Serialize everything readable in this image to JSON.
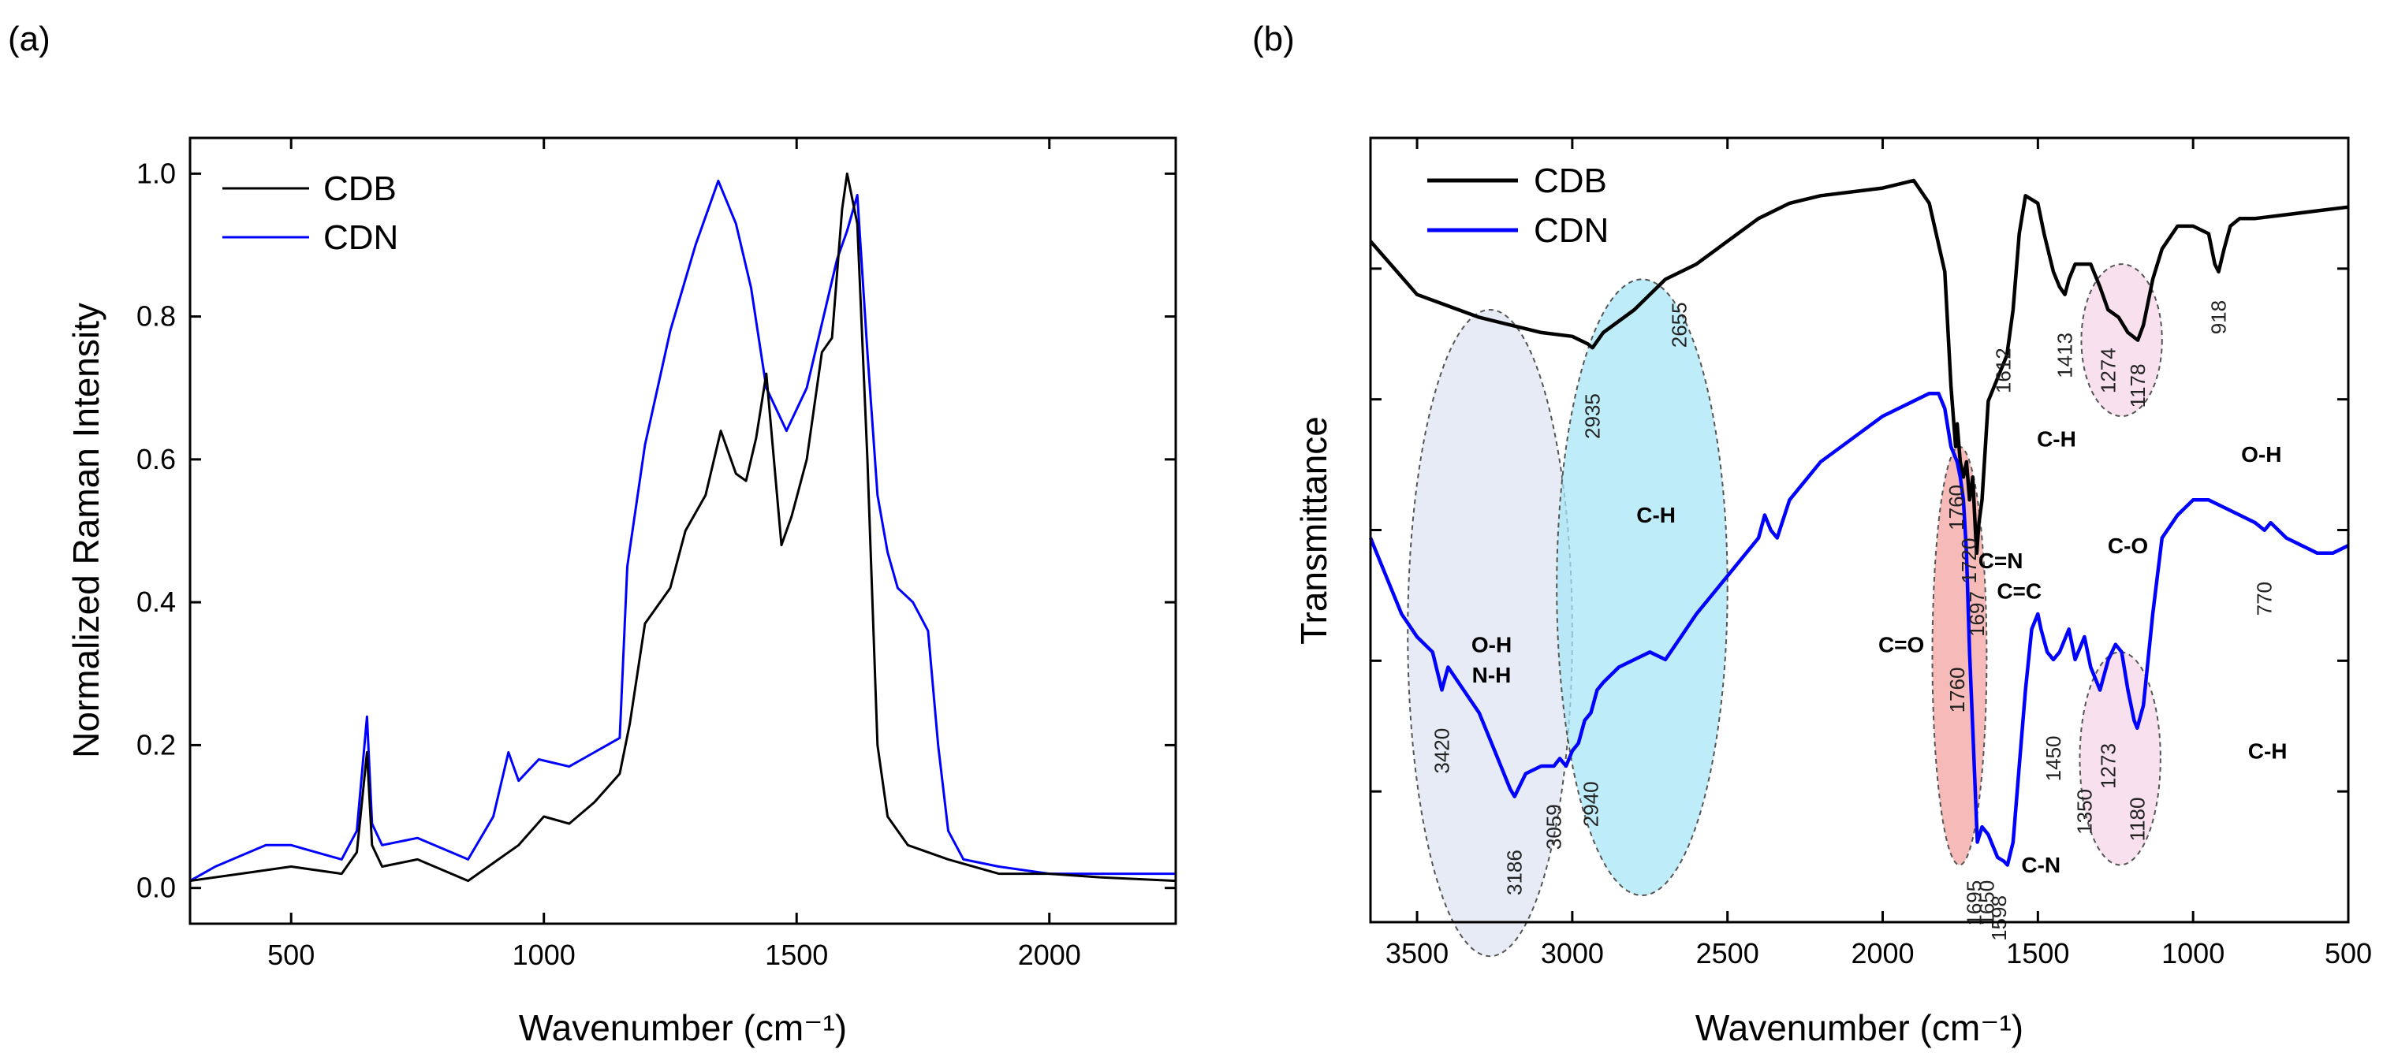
{
  "chart_data": [
    {
      "panel": "(a)",
      "type": "line",
      "xlabel": "Wavenumber (cm⁻¹)",
      "ylabel": "Normalized Raman Intensity",
      "xlim": [
        300,
        2250
      ],
      "ylim": [
        -0.05,
        1.05
      ],
      "xticks": [
        500,
        1000,
        1500,
        2000
      ],
      "yticks": [
        "0.0",
        "0.2",
        "0.4",
        "0.6",
        "0.8",
        "1.0"
      ],
      "legend_position": "top-left",
      "series": [
        {
          "name": "CDB",
          "color": "#000000",
          "x": [
            300,
            400,
            500,
            600,
            630,
            650,
            660,
            680,
            750,
            850,
            950,
            1000,
            1050,
            1100,
            1150,
            1170,
            1200,
            1250,
            1280,
            1320,
            1350,
            1380,
            1400,
            1420,
            1440,
            1470,
            1490,
            1520,
            1550,
            1570,
            1590,
            1600,
            1620,
            1640,
            1660,
            1680,
            1720,
            1800,
            1900,
            2000,
            2100,
            2250
          ],
          "y": [
            0.01,
            0.02,
            0.03,
            0.02,
            0.05,
            0.19,
            0.06,
            0.03,
            0.04,
            0.01,
            0.06,
            0.1,
            0.09,
            0.12,
            0.16,
            0.23,
            0.37,
            0.42,
            0.5,
            0.55,
            0.64,
            0.58,
            0.57,
            0.63,
            0.72,
            0.48,
            0.52,
            0.6,
            0.75,
            0.77,
            0.95,
            1.0,
            0.93,
            0.6,
            0.2,
            0.1,
            0.06,
            0.04,
            0.02,
            0.02,
            0.015,
            0.01
          ]
        },
        {
          "name": "CDN",
          "color": "#0000ff",
          "x": [
            300,
            350,
            450,
            500,
            550,
            600,
            630,
            650,
            660,
            680,
            750,
            850,
            900,
            930,
            950,
            990,
            1050,
            1100,
            1150,
            1165,
            1200,
            1250,
            1300,
            1330,
            1345,
            1380,
            1410,
            1440,
            1480,
            1520,
            1560,
            1580,
            1600,
            1620,
            1640,
            1660,
            1680,
            1700,
            1730,
            1760,
            1780,
            1800,
            1830,
            1900,
            2000,
            2100,
            2250
          ],
          "y": [
            0.01,
            0.03,
            0.06,
            0.06,
            0.05,
            0.04,
            0.08,
            0.24,
            0.09,
            0.06,
            0.07,
            0.04,
            0.1,
            0.19,
            0.15,
            0.18,
            0.17,
            0.19,
            0.21,
            0.45,
            0.62,
            0.78,
            0.9,
            0.96,
            0.99,
            0.93,
            0.84,
            0.7,
            0.64,
            0.7,
            0.82,
            0.88,
            0.92,
            0.97,
            0.75,
            0.55,
            0.47,
            0.42,
            0.4,
            0.36,
            0.2,
            0.08,
            0.04,
            0.03,
            0.02,
            0.02,
            0.02
          ]
        }
      ]
    },
    {
      "panel": "(b)",
      "type": "line",
      "xlabel": "Wavenumber (cm⁻¹)",
      "ylabel": "Transmittance",
      "xlim": [
        3650,
        500
      ],
      "xticks": [
        3500,
        3000,
        2500,
        2000,
        1500,
        1000,
        500
      ],
      "legend_position": "top-left",
      "series": [
        {
          "name": "CDB",
          "color": "#000000",
          "x": [
            3650,
            3500,
            3300,
            3100,
            3000,
            2950,
            2935,
            2900,
            2800,
            2700,
            2600,
            2500,
            2400,
            2300,
            2200,
            2000,
            1900,
            1850,
            1800,
            1780,
            1765,
            1760,
            1750,
            1740,
            1730,
            1720,
            1710,
            1700,
            1697,
            1690,
            1680,
            1660,
            1620,
            1600,
            1580,
            1560,
            1540,
            1500,
            1480,
            1450,
            1430,
            1413,
            1400,
            1380,
            1330,
            1300,
            1274,
            1240,
            1210,
            1178,
            1160,
            1130,
            1100,
            1050,
            1000,
            950,
            930,
            918,
            900,
            880,
            850,
            800,
            700,
            600,
            500
          ],
          "y": [
            0.89,
            0.82,
            0.79,
            0.77,
            0.765,
            0.755,
            0.75,
            0.77,
            0.8,
            0.84,
            0.86,
            0.89,
            0.92,
            0.94,
            0.95,
            0.96,
            0.97,
            0.94,
            0.85,
            0.7,
            0.62,
            0.65,
            0.6,
            0.58,
            0.6,
            0.55,
            0.58,
            0.5,
            0.48,
            0.52,
            0.55,
            0.68,
            0.72,
            0.74,
            0.8,
            0.9,
            0.95,
            0.94,
            0.9,
            0.85,
            0.83,
            0.82,
            0.84,
            0.86,
            0.86,
            0.83,
            0.8,
            0.79,
            0.77,
            0.76,
            0.78,
            0.84,
            0.88,
            0.91,
            0.91,
            0.9,
            0.86,
            0.85,
            0.88,
            0.91,
            0.92,
            0.92,
            0.925,
            0.93,
            0.935
          ]
        },
        {
          "name": "CDN",
          "color": "#0000ff",
          "x": [
            3650,
            3600,
            3550,
            3500,
            3450,
            3420,
            3400,
            3350,
            3300,
            3250,
            3200,
            3186,
            3150,
            3100,
            3059,
            3040,
            3020,
            3000,
            2980,
            2960,
            2940,
            2920,
            2900,
            2850,
            2800,
            2750,
            2700,
            2650,
            2600,
            2500,
            2400,
            2380,
            2360,
            2340,
            2300,
            2200,
            2100,
            2000,
            1900,
            1850,
            1820,
            1800,
            1780,
            1760,
            1750,
            1740,
            1730,
            1720,
            1710,
            1700,
            1695,
            1680,
            1660,
            1650,
            1630,
            1610,
            1598,
            1580,
            1560,
            1540,
            1520,
            1500,
            1490,
            1470,
            1450,
            1430,
            1400,
            1380,
            1360,
            1350,
            1330,
            1300,
            1273,
            1250,
            1230,
            1210,
            1190,
            1180,
            1160,
            1130,
            1100,
            1050,
            1000,
            950,
            900,
            850,
            800,
            770,
            750,
            700,
            650,
            600,
            550,
            500
          ],
          "y": [
            0.5,
            0.45,
            0.4,
            0.37,
            0.35,
            0.3,
            0.33,
            0.3,
            0.27,
            0.22,
            0.17,
            0.16,
            0.19,
            0.2,
            0.2,
            0.21,
            0.2,
            0.22,
            0.23,
            0.26,
            0.27,
            0.3,
            0.31,
            0.33,
            0.34,
            0.35,
            0.34,
            0.37,
            0.4,
            0.45,
            0.5,
            0.53,
            0.51,
            0.5,
            0.55,
            0.6,
            0.63,
            0.66,
            0.68,
            0.69,
            0.69,
            0.67,
            0.62,
            0.6,
            0.58,
            0.55,
            0.48,
            0.35,
            0.25,
            0.15,
            0.1,
            0.12,
            0.11,
            0.1,
            0.08,
            0.075,
            0.07,
            0.1,
            0.2,
            0.3,
            0.38,
            0.4,
            0.38,
            0.35,
            0.34,
            0.35,
            0.38,
            0.34,
            0.36,
            0.37,
            0.33,
            0.3,
            0.34,
            0.36,
            0.35,
            0.3,
            0.26,
            0.25,
            0.28,
            0.4,
            0.5,
            0.53,
            0.55,
            0.55,
            0.54,
            0.53,
            0.52,
            0.51,
            0.52,
            0.5,
            0.49,
            0.48,
            0.48,
            0.49
          ]
        }
      ],
      "peak_labels": [
        {
          "text": "2935",
          "wavenumber": 2935,
          "level": 0.66
        },
        {
          "text": "2655",
          "wavenumber": 2655,
          "level": 0.78
        },
        {
          "text": "1760",
          "wavenumber": 1762,
          "level": 0.54
        },
        {
          "text": "1720",
          "wavenumber": 1722,
          "level": 0.47
        },
        {
          "text": "1697",
          "wavenumber": 1697,
          "level": 0.4
        },
        {
          "text": "1612",
          "wavenumber": 1612,
          "level": 0.72
        },
        {
          "text": "1413",
          "wavenumber": 1413,
          "level": 0.74
        },
        {
          "text": "1274",
          "wavenumber": 1274,
          "level": 0.72
        },
        {
          "text": "1178",
          "wavenumber": 1178,
          "level": 0.7
        },
        {
          "text": "918",
          "wavenumber": 918,
          "level": 0.79
        },
        {
          "text": "3420",
          "wavenumber": 3420,
          "level": 0.22
        },
        {
          "text": "3186",
          "wavenumber": 3186,
          "level": 0.06
        },
        {
          "text": "3059",
          "wavenumber": 3059,
          "level": 0.12
        },
        {
          "text": "2940",
          "wavenumber": 2940,
          "level": 0.15
        },
        {
          "text": "1760",
          "wavenumber": 1760,
          "level": 0.3
        },
        {
          "text": "1695",
          "wavenumber": 1705,
          "level": 0.02
        },
        {
          "text": "1650",
          "wavenumber": 1665,
          "level": 0.02
        },
        {
          "text": "1598",
          "wavenumber": 1625,
          "level": 0.0
        },
        {
          "text": "1450",
          "wavenumber": 1450,
          "level": 0.21
        },
        {
          "text": "1350",
          "wavenumber": 1350,
          "level": 0.14
        },
        {
          "text": "1273",
          "wavenumber": 1273,
          "level": 0.2
        },
        {
          "text": "1180",
          "wavenumber": 1180,
          "level": 0.13
        },
        {
          "text": "770",
          "wavenumber": 770,
          "level": 0.42
        }
      ],
      "assignments": [
        {
          "text": "C-H",
          "wavenumber": 2730,
          "level": 0.52
        },
        {
          "text": "O-H",
          "wavenumber": 3260,
          "level": 0.35
        },
        {
          "text": "N-H",
          "wavenumber": 3260,
          "level": 0.31
        },
        {
          "text": "C=O",
          "wavenumber": 1940,
          "level": 0.35
        },
        {
          "text": "C=N",
          "wavenumber": 1620,
          "level": 0.46
        },
        {
          "text": "C=C",
          "wavenumber": 1560,
          "level": 0.42
        },
        {
          "text": "C-H",
          "wavenumber": 1440,
          "level": 0.62
        },
        {
          "text": "C-O",
          "wavenumber": 1210,
          "level": 0.48
        },
        {
          "text": "O-H",
          "wavenumber": 780,
          "level": 0.6
        },
        {
          "text": "C-N",
          "wavenumber": 1490,
          "level": 0.06
        },
        {
          "text": "C-H",
          "wavenumber": 760,
          "level": 0.21
        }
      ],
      "regions": [
        {
          "name": "oh-nh-ellipse",
          "color": "#dfe4f2",
          "x_range": [
            3530,
            3000
          ],
          "level_range": [
            -0.05,
            0.8
          ]
        },
        {
          "name": "ch-ellipse",
          "color": "#a8e6f5",
          "x_range": [
            3050,
            2500
          ],
          "level_range": [
            0.03,
            0.84
          ]
        },
        {
          "name": "co-ellipse",
          "color": "#f3a4a0",
          "x_range": [
            1840,
            1665
          ],
          "level_range": [
            0.07,
            0.62
          ]
        },
        {
          "name": "c-o-top-ellipse",
          "color": "#f6d6ea",
          "x_range": [
            1360,
            1100
          ],
          "level_range": [
            0.66,
            0.86
          ]
        },
        {
          "name": "c-o-bottom-ellipse",
          "color": "#f6d6ea",
          "x_range": [
            1365,
            1105
          ],
          "level_range": [
            0.07,
            0.35
          ]
        }
      ]
    }
  ]
}
